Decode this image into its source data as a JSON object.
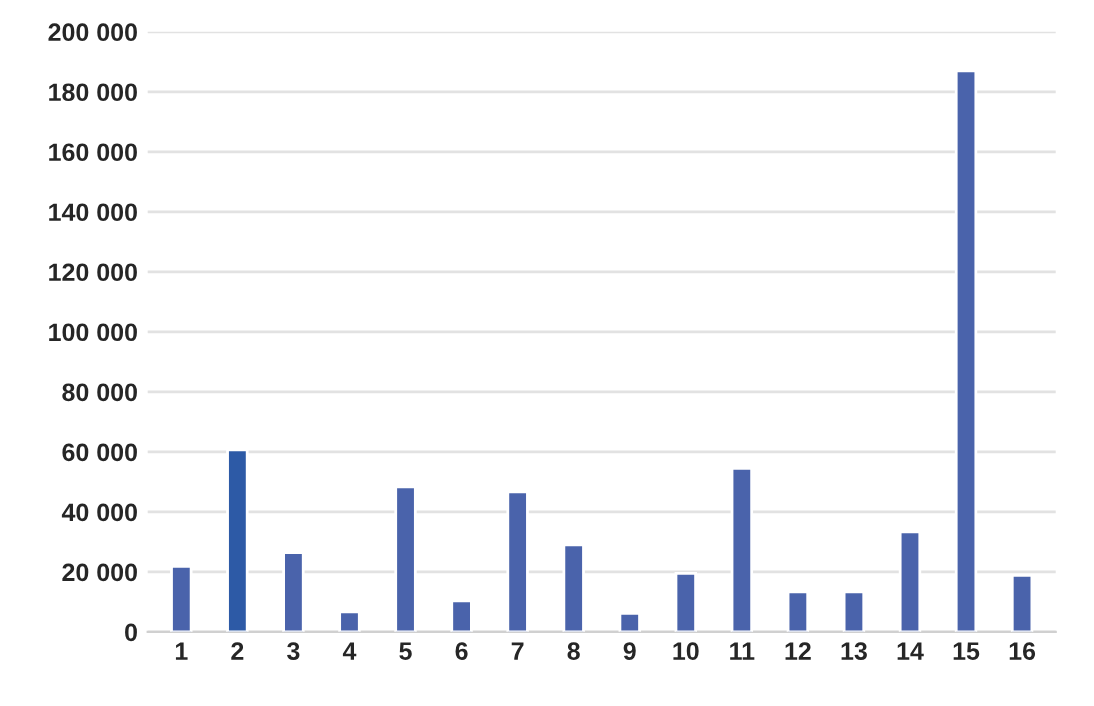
{
  "chart_data": {
    "type": "bar",
    "categories": [
      "1",
      "2",
      "3",
      "4",
      "5",
      "6",
      "7",
      "8",
      "9",
      "10",
      "11",
      "12",
      "13",
      "14",
      "15",
      "16"
    ],
    "values": [
      21800,
      60700,
      26400,
      6700,
      48300,
      10300,
      46700,
      29000,
      6200,
      19500,
      54500,
      13300,
      13300,
      33300,
      187000,
      18800
    ],
    "colors": [
      "#4a63ab",
      "#2d5aa6",
      "#4a63ab",
      "#4a63ab",
      "#4a63ab",
      "#4a63ab",
      "#4a63ab",
      "#4a63ab",
      "#4a63ab",
      "#4a63ab",
      "#4a63ab",
      "#4a63ab",
      "#4a63ab",
      "#4a63ab",
      "#4a63ab",
      "#4a63ab"
    ],
    "ylim": [
      0,
      200000
    ],
    "yticks": [
      {
        "value": 0,
        "label": "0"
      },
      {
        "value": 20000,
        "label": "20 000"
      },
      {
        "value": 40000,
        "label": "40 000"
      },
      {
        "value": 60000,
        "label": "60 000"
      },
      {
        "value": 80000,
        "label": "80 000"
      },
      {
        "value": 100000,
        "label": "100 000"
      },
      {
        "value": 120000,
        "label": "120 000"
      },
      {
        "value": 140000,
        "label": "140 000"
      },
      {
        "value": 160000,
        "label": "160 000"
      },
      {
        "value": 180000,
        "label": "180 000"
      },
      {
        "value": 200000,
        "label": "200 000"
      }
    ],
    "grid": "y"
  }
}
